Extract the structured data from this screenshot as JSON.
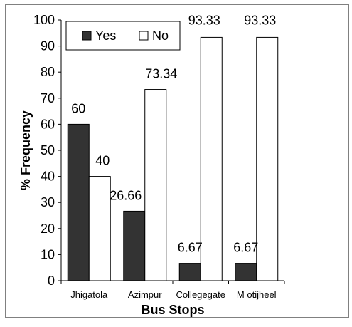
{
  "chart_data": {
    "type": "bar",
    "title": "",
    "xlabel": "Bus Stops",
    "ylabel": "% Frequency",
    "categories": [
      "Jhigatola",
      "Azimpur",
      "Collegegate",
      "M otijheel"
    ],
    "series": [
      {
        "name": "Yes",
        "values": [
          60,
          26.66,
          6.67,
          6.67
        ],
        "labels": [
          "60",
          "26.66",
          "6.67",
          "6.67"
        ],
        "color": "#333333"
      },
      {
        "name": "No",
        "values": [
          40,
          73.34,
          93.33,
          93.33
        ],
        "labels": [
          "40",
          "73.34",
          "93.33",
          "93.33"
        ],
        "color": "#ffffff"
      }
    ],
    "ylim": [
      0,
      100
    ],
    "yticks": [
      "0",
      "10",
      "20",
      "30",
      "40",
      "50",
      "60",
      "70",
      "80",
      "90",
      "100"
    ],
    "grid": false,
    "legend_position": "top-left"
  }
}
